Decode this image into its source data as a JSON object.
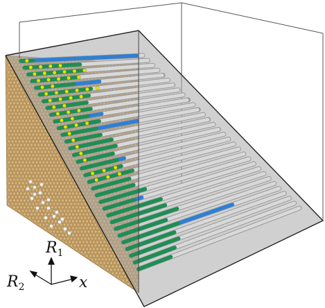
{
  "axes": {
    "r1": "R1",
    "r2": "R2",
    "x": "x"
  },
  "colors": {
    "substrate": "#c4a06a",
    "substrate_dark": "#8e6d3c",
    "plane": "#a9a9a9",
    "atom_grey": "#d9d9d9",
    "atom_blue": "#2f7fd4",
    "atom_green": "#1f8e52",
    "atom_yellow": "#e7e300",
    "frame": "#333333"
  },
  "rows": [
    {
      "blue": 0.95,
      "green": 0.1,
      "yellow": 0.05
    },
    {
      "blue": 0.3,
      "green": 0.45,
      "yellow": 0.2
    },
    {
      "blue": 0.2,
      "green": 0.45,
      "yellow": 0.3
    },
    {
      "blue": 0.25,
      "green": 0.35,
      "yellow": 0.25
    },
    {
      "blue": 0.5,
      "green": 0.3,
      "yellow": 0.1
    },
    {
      "blue": 0.2,
      "green": 0.4,
      "yellow": 0.3
    },
    {
      "blue": 0.2,
      "green": 0.35,
      "yellow": 0.2
    },
    {
      "blue": 0.3,
      "green": 0.3,
      "yellow": 0.1
    },
    {
      "blue": 0.25,
      "green": 0.3,
      "yellow": 0.15
    },
    {
      "blue": 0.35,
      "green": 0.25,
      "yellow": 0.1
    },
    {
      "blue": 0.3,
      "green": 0.3,
      "yellow": 0.15
    },
    {
      "blue": 0.55,
      "green": 0.25,
      "yellow": 0.05
    },
    {
      "blue": 0.2,
      "green": 0.25,
      "yellow": 0.05
    },
    {
      "blue": 0.3,
      "green": 0.3,
      "yellow": 0.05
    },
    {
      "blue": 0.2,
      "green": 0.3,
      "yellow": 0.05
    },
    {
      "blue": 0.25,
      "green": 0.25,
      "yellow": 0.05
    },
    {
      "blue": 0.3,
      "green": 0.25,
      "yellow": 0.02
    },
    {
      "blue": 0.25,
      "green": 0.25,
      "yellow": 0.15
    },
    {
      "blue": 0.25,
      "green": 0.3,
      "yellow": 0.15
    },
    {
      "blue": 0.25,
      "green": 0.25,
      "yellow": 0.02
    },
    {
      "blue": 0.25,
      "green": 0.25,
      "yellow": 0.0
    },
    {
      "blue": 0.3,
      "green": 0.3,
      "yellow": 0.0
    },
    {
      "blue": 0.25,
      "green": 0.2,
      "yellow": 0.0
    },
    {
      "blue": 0.3,
      "green": 0.35,
      "yellow": 0.0
    },
    {
      "blue": 0.2,
      "green": 0.35,
      "yellow": 0.0
    },
    {
      "blue": 0.35,
      "green": 0.4,
      "yellow": 0.0
    },
    {
      "blue": 0.3,
      "green": 0.3,
      "yellow": 0.0
    },
    {
      "blue": 0.7,
      "green": 0.35,
      "yellow": 0.0
    },
    {
      "blue": 0.3,
      "green": 0.3,
      "yellow": 0.0
    },
    {
      "blue": 0.3,
      "green": 0.3,
      "yellow": 0.0
    },
    {
      "blue": 0.25,
      "green": 0.25,
      "yellow": 0.0
    },
    {
      "blue": 0.2,
      "green": 0.2,
      "yellow": 0.0
    }
  ]
}
